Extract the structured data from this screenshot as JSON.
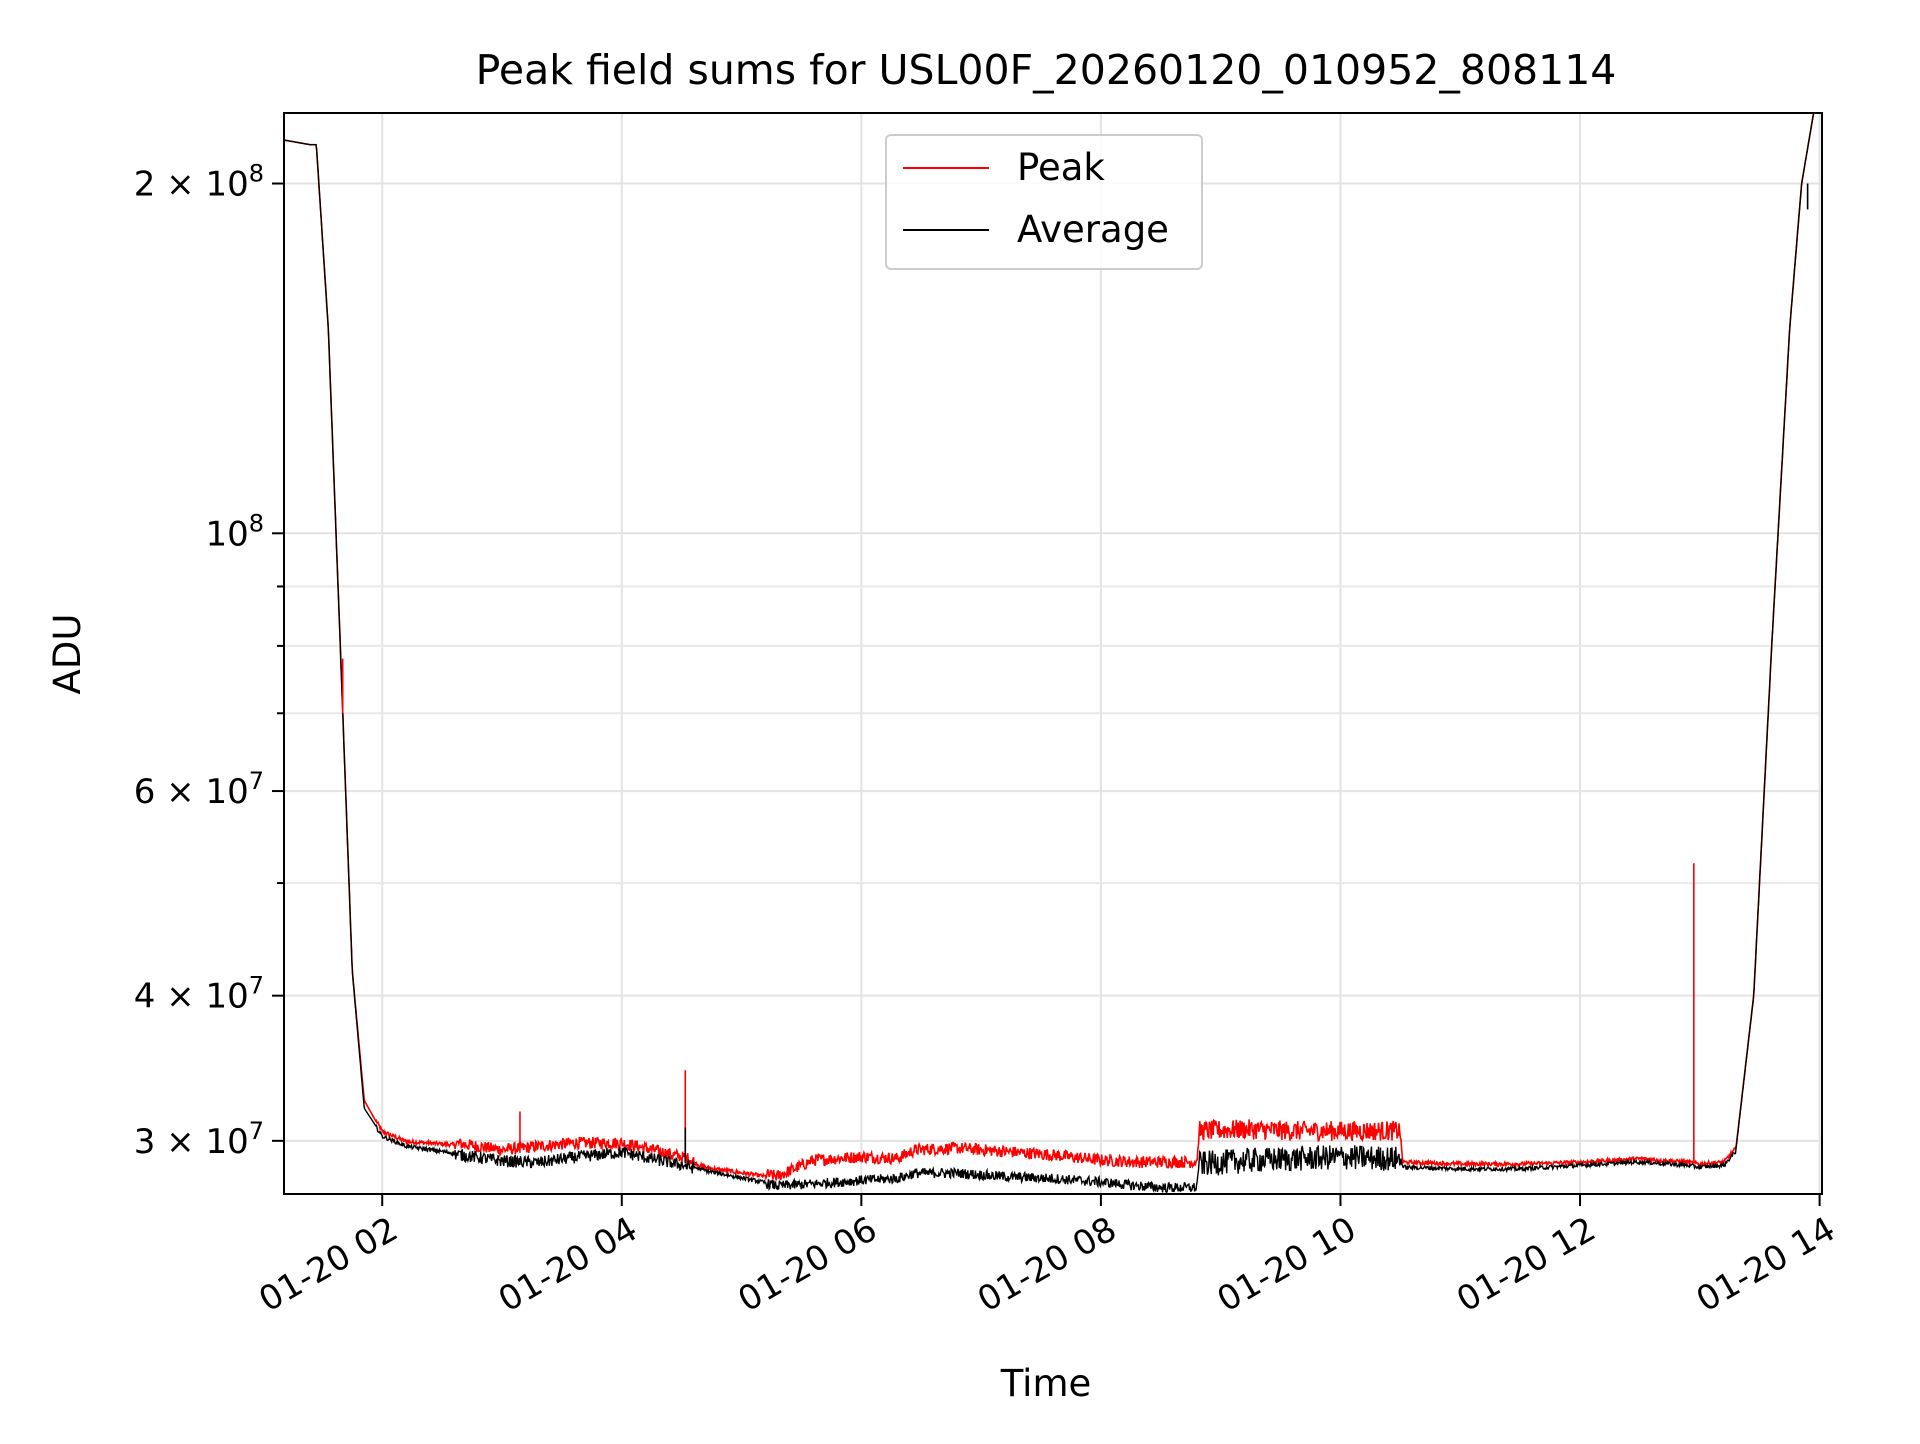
{
  "chart_data": {
    "type": "line",
    "title": "Peak field sums for USL00F_20260120_010952_808114",
    "xlabel": "Time",
    "ylabel": "ADU",
    "yscale": "log",
    "xlim_hours": [
      1.18,
      14.02
    ],
    "ylim": [
      27000000,
      230000000
    ],
    "grid": true,
    "legend_position": "upper center",
    "x_ticks": [
      {
        "value": 2,
        "label": "01-20 02"
      },
      {
        "value": 4,
        "label": "01-20 04"
      },
      {
        "value": 6,
        "label": "01-20 06"
      },
      {
        "value": 8,
        "label": "01-20 08"
      },
      {
        "value": 10,
        "label": "01-20 10"
      },
      {
        "value": 12,
        "label": "01-20 12"
      },
      {
        "value": 14,
        "label": "01-20 14"
      }
    ],
    "y_ticks": [
      {
        "value": 30000000,
        "mantissa": "3",
        "exponent": "7"
      },
      {
        "value": 40000000,
        "mantissa": "4",
        "exponent": "7"
      },
      {
        "value": 60000000,
        "mantissa": "6",
        "exponent": "7"
      },
      {
        "value": 100000000,
        "mantissa": "",
        "exponent": "8"
      },
      {
        "value": 200000000,
        "mantissa": "2",
        "exponent": "8"
      }
    ],
    "y_minor_ticks": [
      50000000,
      70000000,
      80000000,
      90000000
    ],
    "series": [
      {
        "name": "Peak",
        "color": "#ff0000",
        "x": [
          1.18,
          1.4,
          1.45,
          1.55,
          1.65,
          1.75,
          1.85,
          2.0,
          2.2,
          2.6,
          3.0,
          3.3,
          3.6,
          4.0,
          4.2,
          4.55,
          4.7,
          5.0,
          5.3,
          5.6,
          6.0,
          6.3,
          6.45,
          6.8,
          7.2,
          7.6,
          8.0,
          8.3,
          8.5,
          8.8,
          8.82,
          9.2,
          9.6,
          10.0,
          10.5,
          10.52,
          11.0,
          11.5,
          12.0,
          12.5,
          12.9,
          13.0,
          13.2,
          13.3,
          13.45,
          13.6,
          13.75,
          13.85,
          13.95
        ],
        "values": [
          218000000,
          216000000,
          216000000,
          150000000,
          80000000,
          42000000,
          32500000,
          30500000,
          29900000,
          29700000,
          29300000,
          29500000,
          29700000,
          29700000,
          29400000,
          28800000,
          28400000,
          28100000,
          27800000,
          28700000,
          28900000,
          28800000,
          29300000,
          29400000,
          29200000,
          29000000,
          28700000,
          28600000,
          28600000,
          28600000,
          30300000,
          30400000,
          30300000,
          30300000,
          30300000,
          28700000,
          28600000,
          28600000,
          28700000,
          28900000,
          28700000,
          28600000,
          28700000,
          29500000,
          40000000,
          80000000,
          150000000,
          200000000,
          230000000
        ]
      },
      {
        "name": "Average",
        "color": "#000000",
        "x": [
          1.18,
          1.4,
          1.45,
          1.55,
          1.65,
          1.75,
          1.85,
          2.0,
          2.2,
          2.6,
          3.0,
          3.3,
          3.6,
          4.0,
          4.2,
          4.55,
          4.7,
          5.0,
          5.3,
          5.6,
          6.0,
          6.3,
          6.45,
          6.8,
          7.2,
          7.6,
          8.0,
          8.3,
          8.5,
          8.8,
          8.82,
          9.2,
          9.6,
          10.0,
          10.5,
          10.52,
          11.0,
          11.5,
          12.0,
          12.5,
          12.9,
          13.0,
          13.2,
          13.3,
          13.45,
          13.6,
          13.75,
          13.85,
          13.95
        ],
        "values": [
          218000000,
          216000000,
          216000000,
          150000000,
          80000000,
          42000000,
          32000000,
          30300000,
          29700000,
          29300000,
          28900000,
          28800000,
          29100000,
          29400000,
          29100000,
          28600000,
          28300000,
          27900000,
          27500000,
          27600000,
          27800000,
          27900000,
          28200000,
          28200000,
          28000000,
          27900000,
          27700000,
          27500000,
          27400000,
          27400000,
          28800000,
          29000000,
          29100000,
          29200000,
          29100000,
          28500000,
          28400000,
          28400000,
          28600000,
          28800000,
          28600000,
          28500000,
          28600000,
          29400000,
          40000000,
          80000000,
          150000000,
          200000000,
          230000000
        ]
      }
    ],
    "spikes": [
      {
        "series": "Peak",
        "x": 1.67,
        "from": 70000000,
        "to": 78000000
      },
      {
        "series": "Peak",
        "x": 3.15,
        "from": 29300000,
        "to": 31800000
      },
      {
        "series": "Peak",
        "x": 4.53,
        "from": 28900000,
        "to": 34500000
      },
      {
        "series": "Average",
        "x": 4.53,
        "from": 28700000,
        "to": 30800000
      },
      {
        "series": "Peak",
        "x": 12.95,
        "from": 28800000,
        "to": 52000000
      },
      {
        "series": "Average",
        "x": 13.9,
        "from": 190000000,
        "to": 200000000
      }
    ]
  },
  "legend": {
    "peak_label": "Peak",
    "average_label": "Average"
  }
}
